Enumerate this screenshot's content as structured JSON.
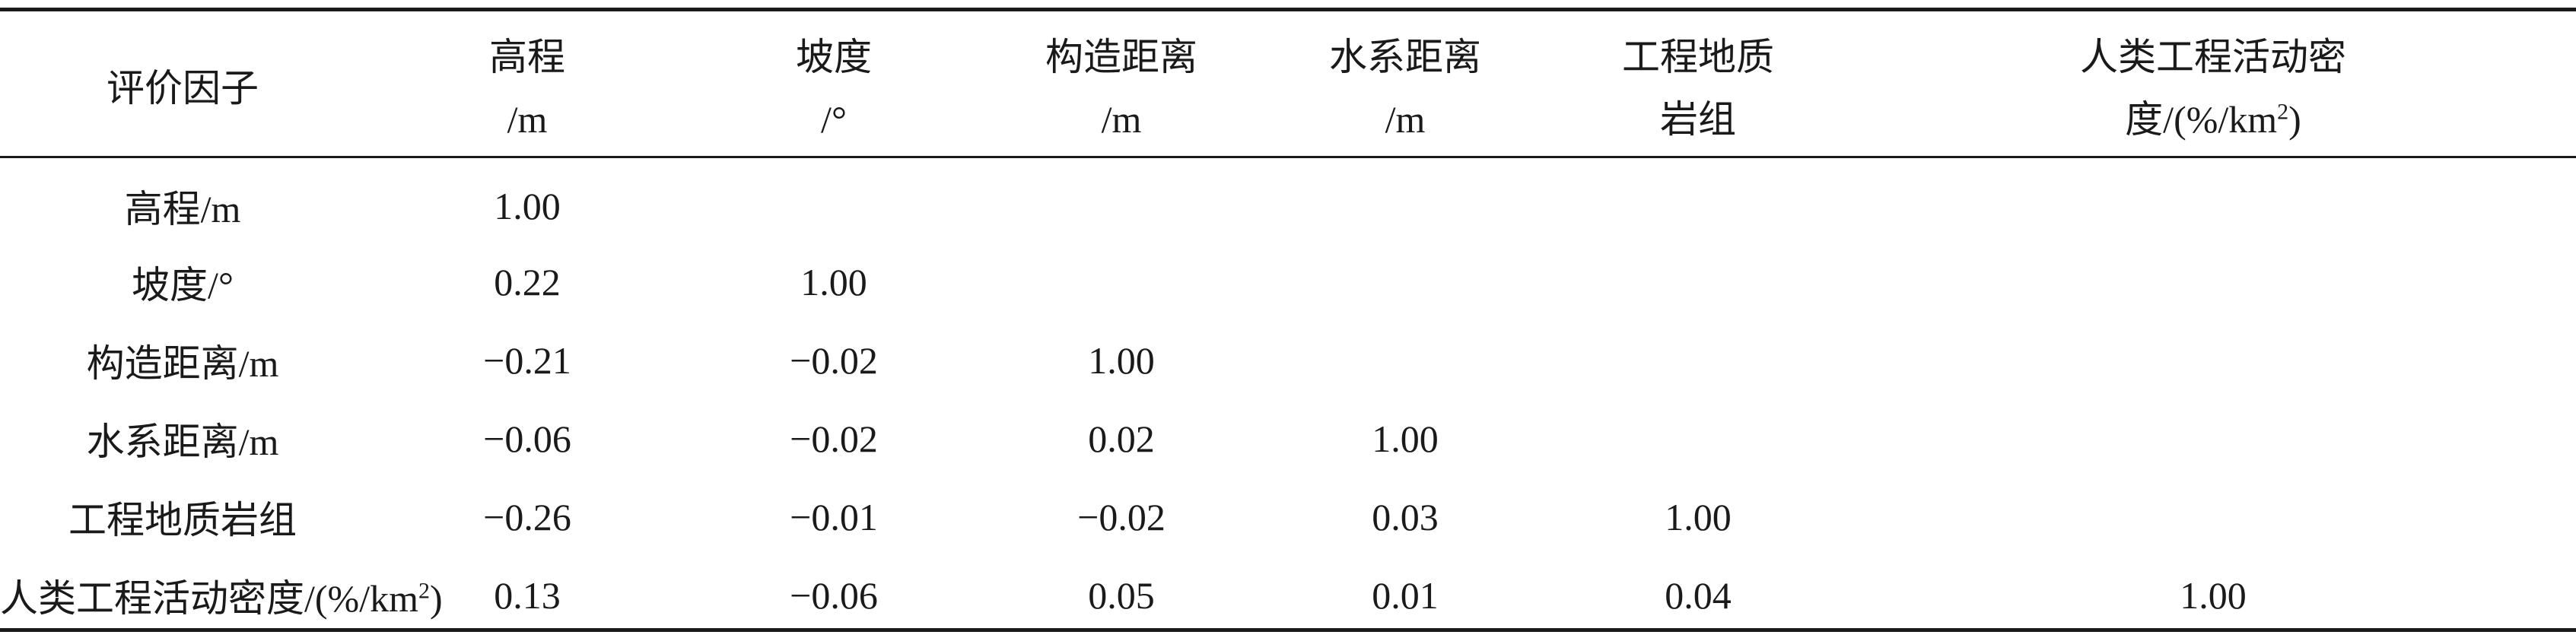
{
  "header": {
    "factor_label": "评价因子",
    "columns": [
      {
        "line1": "高程",
        "line2": "/m"
      },
      {
        "line1": "坡度",
        "line2": "/°"
      },
      {
        "line1": "构造距离",
        "line2": "/m"
      },
      {
        "line1": "水系距离",
        "line2": "/m"
      },
      {
        "line1": "工程地质",
        "line2": "岩组"
      },
      {
        "line1": "人类工程活动密",
        "line2_pre": "度/(%/km",
        "line2_sup": "2",
        "line2_post": ")"
      }
    ]
  },
  "rows": [
    {
      "label": "高程/m",
      "values": [
        "1.00",
        "",
        "",
        "",
        "",
        ""
      ]
    },
    {
      "label": "坡度/°",
      "values": [
        "0.22",
        "1.00",
        "",
        "",
        "",
        ""
      ]
    },
    {
      "label": "构造距离/m",
      "values": [
        "−0.21",
        "−0.02",
        "1.00",
        "",
        "",
        ""
      ]
    },
    {
      "label": "水系距离/m",
      "values": [
        "−0.06",
        "−0.02",
        "0.02",
        "1.00",
        "",
        ""
      ]
    },
    {
      "label": "工程地质岩组",
      "values": [
        "−0.26",
        "−0.01",
        "−0.02",
        "0.03",
        "1.00",
        ""
      ]
    },
    {
      "label_pre": "人类工程活动密度/(%/km",
      "label_sup": "2",
      "label_post": ")",
      "values": [
        "0.13",
        "−0.06",
        "0.05",
        "0.01",
        "0.04",
        "1.00"
      ]
    }
  ]
}
